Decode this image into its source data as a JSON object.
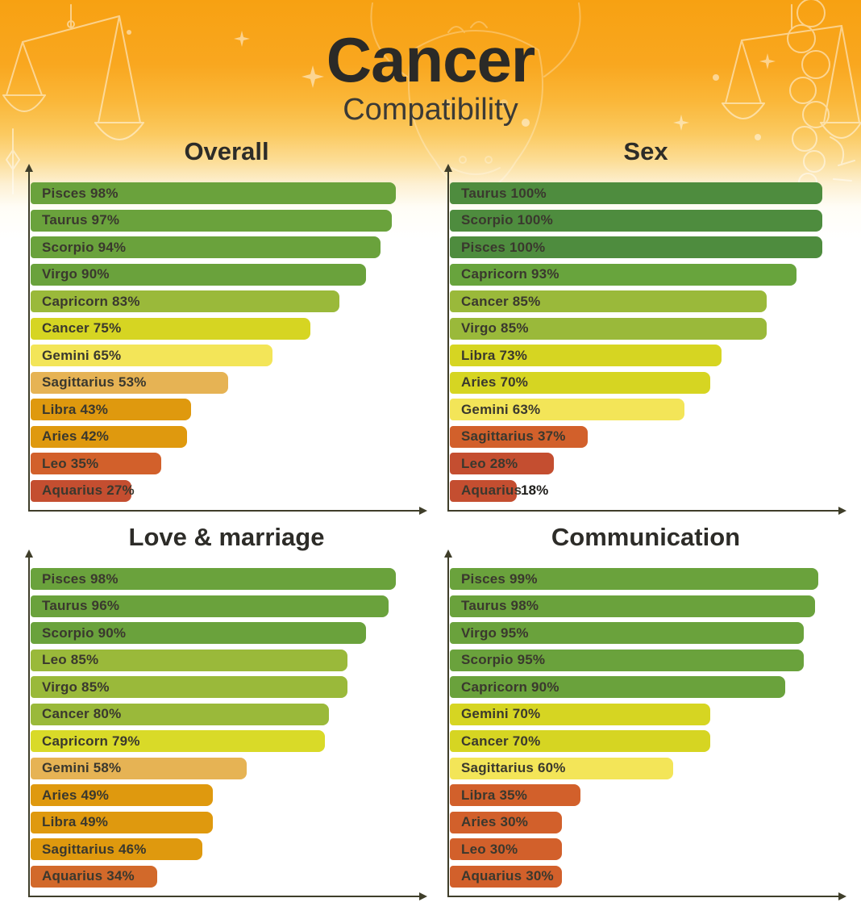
{
  "header": {
    "title": "Cancer",
    "subtitle": "Compatibility"
  },
  "colors": {
    "header_gradient_top": "#f7a112",
    "header_gradient_mid": "#fbc95f",
    "header_gradient_bottom": "#ffffff",
    "axis": "#3f3e2a",
    "bar_label_text": "#3a382e",
    "title_text": "#2b2a27",
    "scale_green_dark": "#4e8c3e",
    "scale_green": "#6aa23c",
    "scale_yellow_green": "#9ab93a",
    "scale_chartreuse": "#d6d522",
    "scale_light_yellow": "#f3e558",
    "scale_tan": "#e6b354",
    "scale_gold": "#df990e",
    "scale_orange": "#d2602b",
    "scale_red": "#c44e30"
  },
  "decorations": [
    "libra-scales-left-illustration",
    "taurus-bull-illustration",
    "scorpio-braid-illustration",
    "libra-scales-right-illustration",
    "scorpio-illustration",
    "sparkle-icons"
  ],
  "chart_data": [
    {
      "type": "bar",
      "title": "Overall",
      "orientation": "horizontal",
      "unit": "%",
      "xlim": [
        0,
        100
      ],
      "grid": false,
      "bars": [
        {
          "sign": "Pisces",
          "value": 98,
          "color": "#6aa23c"
        },
        {
          "sign": "Taurus",
          "value": 97,
          "color": "#6aa23c"
        },
        {
          "sign": "Scorpio",
          "value": 94,
          "color": "#6aa23c"
        },
        {
          "sign": "Virgo",
          "value": 90,
          "color": "#6aa23c"
        },
        {
          "sign": "Capricorn",
          "value": 83,
          "color": "#9ab93a"
        },
        {
          "sign": "Cancer",
          "value": 75,
          "color": "#d6d522"
        },
        {
          "sign": "Gemini",
          "value": 65,
          "color": "#f3e558"
        },
        {
          "sign": "Sagittarius",
          "value": 53,
          "color": "#e6b354"
        },
        {
          "sign": "Libra",
          "value": 43,
          "color": "#df990e"
        },
        {
          "sign": "Aries",
          "value": 42,
          "color": "#df990e"
        },
        {
          "sign": "Leo",
          "value": 35,
          "color": "#d2602b"
        },
        {
          "sign": "Aquarius",
          "value": 27,
          "color": "#c44e30"
        }
      ]
    },
    {
      "type": "bar",
      "title": "Sex",
      "orientation": "horizontal",
      "unit": "%",
      "xlim": [
        0,
        100
      ],
      "grid": false,
      "bars": [
        {
          "sign": "Taurus",
          "value": 100,
          "color": "#4e8c3e"
        },
        {
          "sign": "Scorpio",
          "value": 100,
          "color": "#4e8c3e"
        },
        {
          "sign": "Pisces",
          "value": 100,
          "color": "#4e8c3e"
        },
        {
          "sign": "Capricorn",
          "value": 93,
          "color": "#68a43d"
        },
        {
          "sign": "Cancer",
          "value": 85,
          "color": "#9ab93a"
        },
        {
          "sign": "Virgo",
          "value": 85,
          "color": "#9ab93a"
        },
        {
          "sign": "Libra",
          "value": 73,
          "color": "#d6d522"
        },
        {
          "sign": "Aries",
          "value": 70,
          "color": "#d6d522"
        },
        {
          "sign": "Gemini",
          "value": 63,
          "color": "#f3e558"
        },
        {
          "sign": "Sagittarius",
          "value": 37,
          "color": "#d2602b"
        },
        {
          "sign": "Leo",
          "value": 28,
          "color": "#c44e30"
        },
        {
          "sign": "Aquarius",
          "value": 18,
          "color": "#c44e30",
          "value_outside": true
        }
      ]
    },
    {
      "type": "bar",
      "title": "Love & marriage",
      "orientation": "horizontal",
      "unit": "%",
      "xlim": [
        0,
        100
      ],
      "grid": false,
      "bars": [
        {
          "sign": "Pisces",
          "value": 98,
          "color": "#6aa23c"
        },
        {
          "sign": "Taurus",
          "value": 96,
          "color": "#6aa23c"
        },
        {
          "sign": "Scorpio",
          "value": 90,
          "color": "#6aa23c"
        },
        {
          "sign": "Leo",
          "value": 85,
          "color": "#9ab93a"
        },
        {
          "sign": "Virgo",
          "value": 85,
          "color": "#9ab93a"
        },
        {
          "sign": "Cancer",
          "value": 80,
          "color": "#9ab93a"
        },
        {
          "sign": "Capricorn",
          "value": 79,
          "color": "#d9da28"
        },
        {
          "sign": "Gemini",
          "value": 58,
          "color": "#e6b354"
        },
        {
          "sign": "Aries",
          "value": 49,
          "color": "#df990e"
        },
        {
          "sign": "Libra",
          "value": 49,
          "color": "#df990e"
        },
        {
          "sign": "Sagittarius",
          "value": 46,
          "color": "#df990e"
        },
        {
          "sign": "Aquarius",
          "value": 34,
          "color": "#d2692a"
        }
      ]
    },
    {
      "type": "bar",
      "title": "Communication",
      "orientation": "horizontal",
      "unit": "%",
      "xlim": [
        0,
        100
      ],
      "grid": false,
      "bars": [
        {
          "sign": "Pisces",
          "value": 99,
          "color": "#6aa23c"
        },
        {
          "sign": "Taurus",
          "value": 98,
          "color": "#6aa23c"
        },
        {
          "sign": "Virgo",
          "value": 95,
          "color": "#6aa23c"
        },
        {
          "sign": "Scorpio",
          "value": 95,
          "color": "#6aa23c"
        },
        {
          "sign": "Capricorn",
          "value": 90,
          "color": "#6aa23c"
        },
        {
          "sign": "Gemini",
          "value": 70,
          "color": "#d6d522"
        },
        {
          "sign": "Cancer",
          "value": 70,
          "color": "#d6d522"
        },
        {
          "sign": "Sagittarius",
          "value": 60,
          "color": "#f3e558"
        },
        {
          "sign": "Libra",
          "value": 35,
          "color": "#d2602b"
        },
        {
          "sign": "Aries",
          "value": 30,
          "color": "#d2602b"
        },
        {
          "sign": "Leo",
          "value": 30,
          "color": "#d2602b"
        },
        {
          "sign": "Aquarius",
          "value": 30,
          "color": "#d2602b"
        }
      ]
    }
  ]
}
